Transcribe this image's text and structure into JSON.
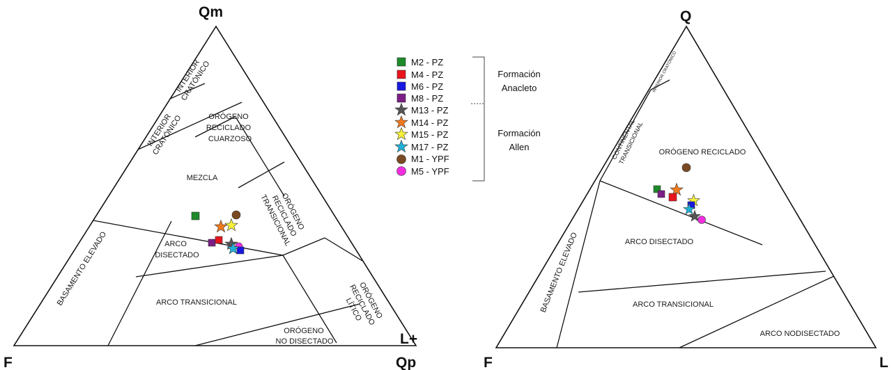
{
  "left_diagram": {
    "vertices": {
      "top": "Qm",
      "left": "F",
      "right_line1": "L+",
      "right_line2": "Qp"
    },
    "fields": {
      "interior_cratonico_top_1": "INTERIOR",
      "interior_cratonico_top_2": "CRATÓNICO",
      "interior_cratonico_1": "INTERIOR",
      "interior_cratonico_2": "CRATÓNICO",
      "orogeno_cuarzoso_1": "ORÓGENO",
      "orogeno_cuarzoso_2": "RECICLADO",
      "orogeno_cuarzoso_3": "CUARZOSO",
      "mezcla": "MEZCLA",
      "orogeno_transicional_1": "ORÓGENO",
      "orogeno_transicional_2": "RECICLADO",
      "orogeno_transicional_3": "TRANSICIONAL",
      "basamento": "BASAMENTO ELEVADO",
      "arco_disectado_1": "ARCO",
      "arco_disectado_2": "DISECTADO",
      "arco_transicional": "ARCO TRANSICIONAL",
      "orogeno_litico_1": "ORÓGENO",
      "orogeno_litico_2": "RECICLADO",
      "orogeno_litico_3": "LÍTICO",
      "no_disectado_1": "ORÓGENO",
      "no_disectado_2": "NO DISECTADO"
    }
  },
  "right_diagram": {
    "vertices": {
      "top": "Q",
      "left": "F",
      "right": "L"
    },
    "fields": {
      "interior_cratonico": "INTERIOR CRATÓNICO",
      "continental_1": "CONTINENTAL",
      "continental_2": "TRANSICIONAL",
      "orogeno_reciclado": "ORÓGENO RECICLADO",
      "basamento": "BASAMENTO ELEVADO",
      "arco_disectado": "ARCO DISECTADO",
      "arco_transicional": "ARCO TRANSICIONAL",
      "arco_nodisectado": "ARCO NODISECTADO"
    }
  },
  "legend": {
    "items": [
      {
        "label": "M2 - PZ",
        "marker": "square",
        "color": "#1e8a2a"
      },
      {
        "label": "M4 - PZ",
        "marker": "square",
        "color": "#e8141b"
      },
      {
        "label": "M6 - PZ",
        "marker": "square",
        "color": "#1818e0"
      },
      {
        "label": "M8 - PZ",
        "marker": "square",
        "color": "#7b1f86"
      },
      {
        "label": "M13 - PZ",
        "marker": "star",
        "color": "#555555"
      },
      {
        "label": "M14 - PZ",
        "marker": "star",
        "color": "#f07a1e"
      },
      {
        "label": "M15 - PZ",
        "marker": "star",
        "color": "#f5f03a"
      },
      {
        "label": "M17 - PZ",
        "marker": "star",
        "color": "#22b0d6"
      },
      {
        "label": "M1 - YPF",
        "marker": "circle",
        "color": "#7a4a22"
      },
      {
        "label": "M5 - YPF",
        "marker": "circle",
        "color": "#f02ee0"
      }
    ],
    "groups": [
      {
        "line1": "Formación",
        "line2": "Anacleto"
      },
      {
        "line1": "Formación",
        "line2": "Allen"
      }
    ]
  }
}
